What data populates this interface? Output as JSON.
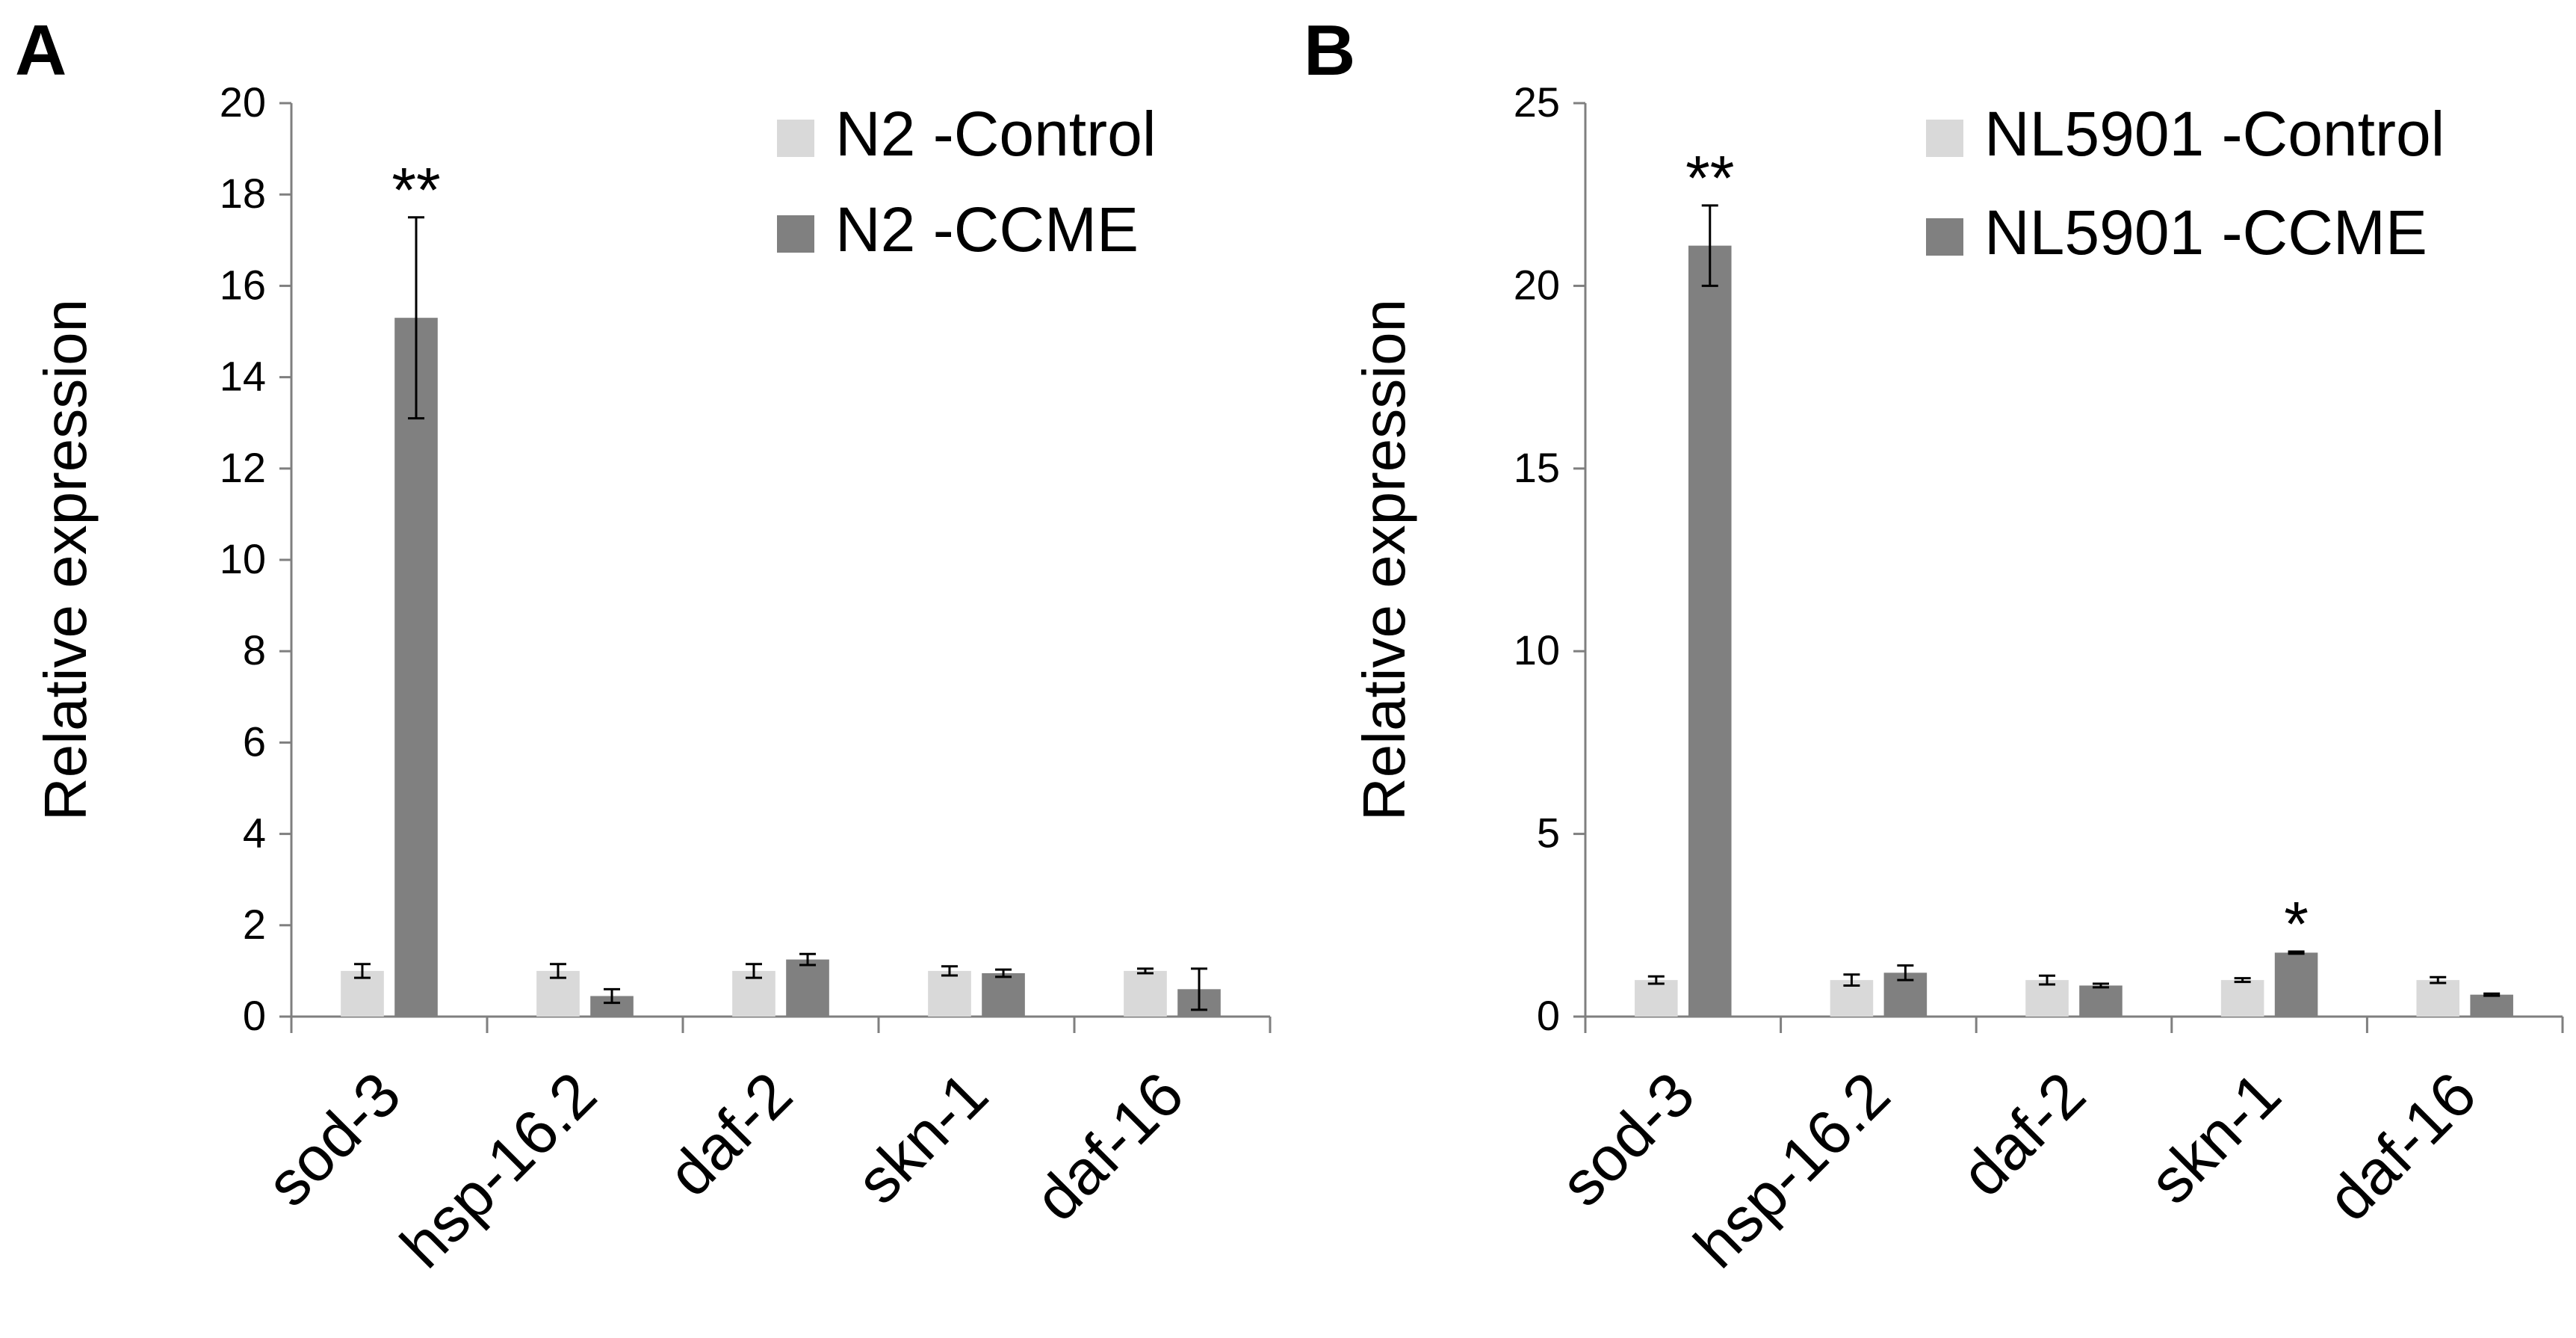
{
  "colors": {
    "control": "#d9d9d9",
    "treatment": "#808080",
    "axis": "#7f7f7f",
    "text": "#000000"
  },
  "chart_data": [
    {
      "type": "bar",
      "panel_label": "A",
      "ylabel": "Relative expression",
      "ylim": [
        0,
        20
      ],
      "yticks": [
        "0",
        "2",
        "4",
        "6",
        "8",
        "10",
        "12",
        "14",
        "16",
        "18",
        "20"
      ],
      "ytick_values": [
        0,
        2,
        4,
        6,
        8,
        10,
        12,
        14,
        16,
        18,
        20
      ],
      "categories": [
        "sod-3",
        "hsp-16.2",
        "daf-2",
        "skn-1",
        "daf-16"
      ],
      "legend_position": "top-right",
      "series": [
        {
          "name": "N2 -Control",
          "color_key": "control",
          "values": [
            1.0,
            1.0,
            1.0,
            1.0,
            1.0
          ],
          "errors": [
            0.15,
            0.15,
            0.15,
            0.1,
            0.05
          ]
        },
        {
          "name": "N2 -CCME",
          "color_key": "treatment",
          "values": [
            15.3,
            0.45,
            1.25,
            0.95,
            0.6
          ],
          "errors": [
            2.2,
            0.15,
            0.12,
            0.08,
            0.45
          ]
        }
      ],
      "annotations": [
        {
          "category_index": 0,
          "series_index": 1,
          "text": "**"
        }
      ]
    },
    {
      "type": "bar",
      "panel_label": "B",
      "ylabel": "Relative expression",
      "ylim": [
        0,
        25
      ],
      "yticks": [
        "0",
        "5",
        "10",
        "15",
        "20",
        "25"
      ],
      "ytick_values": [
        0,
        5,
        10,
        15,
        20,
        25
      ],
      "categories": [
        "sod-3",
        "hsp-16.2",
        "daf-2",
        "skn-1",
        "daf-16"
      ],
      "legend_position": "top-right",
      "series": [
        {
          "name": "NL5901 -Control",
          "color_key": "control",
          "values": [
            1.0,
            1.0,
            1.0,
            1.0,
            1.0
          ],
          "errors": [
            0.1,
            0.15,
            0.12,
            0.05,
            0.08
          ]
        },
        {
          "name": "NL5901 -CCME",
          "color_key": "treatment",
          "values": [
            21.1,
            1.2,
            0.85,
            1.75,
            0.6
          ],
          "errors": [
            1.1,
            0.2,
            0.05,
            0.03,
            0.03
          ]
        }
      ],
      "annotations": [
        {
          "category_index": 0,
          "series_index": 1,
          "text": "**"
        },
        {
          "category_index": 3,
          "series_index": 1,
          "text": "*"
        }
      ]
    }
  ]
}
